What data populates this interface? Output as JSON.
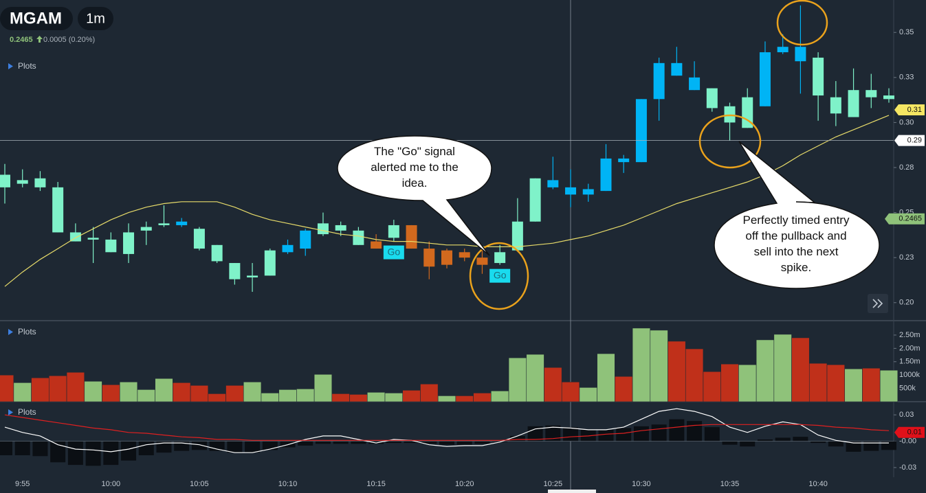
{
  "header": {
    "symbol": "MGAM",
    "interval": "1m",
    "price": 0.2465,
    "change": "0.0005 (0.20%)"
  },
  "callouts": [
    [
      "The \"Go\" signal",
      "alerted me to the",
      "idea."
    ],
    [
      "Perfectly timed entry",
      "off the pullback and",
      "sell into the next",
      "spike."
    ]
  ],
  "chart_data": [
    {
      "type": "candlestick",
      "panel_label": "Plots",
      "categories": [
        null,
        "9:55",
        null,
        null,
        null,
        null,
        "10:00",
        null,
        null,
        null,
        null,
        "10:05",
        null,
        null,
        null,
        null,
        "10:10",
        null,
        null,
        null,
        null,
        "10:15",
        null,
        null,
        null,
        null,
        "10:20",
        null,
        null,
        null,
        null,
        "10:25",
        null,
        null,
        null,
        null,
        "10:30",
        null,
        null,
        null,
        null,
        "10:35",
        null,
        null,
        null,
        null,
        "10:40",
        null,
        null,
        null,
        null
      ],
      "open": [
        0.271,
        0.266,
        0.269,
        0.264,
        0.239,
        0.235,
        0.235,
        0.227,
        0.24,
        0.243,
        0.243,
        0.241,
        0.232,
        0.222,
        0.214,
        0.215,
        0.228,
        0.23,
        0.238,
        0.243,
        0.24,
        0.234,
        0.236,
        0.243,
        0.23,
        0.229,
        0.228,
        0.225,
        0.222,
        0.229,
        0.245,
        0.268,
        0.264,
        0.26,
        0.262,
        0.278,
        0.278,
        0.313,
        0.333,
        0.325,
        0.319,
        0.309,
        0.297,
        0.309,
        0.339,
        0.342,
        0.336,
        0.314,
        0.303,
        0.318,
        0.315
      ],
      "high": [
        0.277,
        0.274,
        0.273,
        0.267,
        0.244,
        0.242,
        0.239,
        0.244,
        0.245,
        0.254,
        0.247,
        0.242,
        0.232,
        0.222,
        0.222,
        0.23,
        0.235,
        0.241,
        0.25,
        0.245,
        0.242,
        0.238,
        0.246,
        0.243,
        0.234,
        0.23,
        0.23,
        0.23,
        0.232,
        0.258,
        0.269,
        0.281,
        0.274,
        0.266,
        0.288,
        0.282,
        0.313,
        0.336,
        0.342,
        0.334,
        0.319,
        0.311,
        0.319,
        0.345,
        0.349,
        0.365,
        0.339,
        0.323,
        0.33,
        0.327,
        0.319
      ],
      "low": [
        0.255,
        0.264,
        0.262,
        0.239,
        0.234,
        0.222,
        0.228,
        0.222,
        0.232,
        0.242,
        0.242,
        0.229,
        0.222,
        0.21,
        0.206,
        0.215,
        0.227,
        0.226,
        0.237,
        0.237,
        0.232,
        0.23,
        0.234,
        0.23,
        0.213,
        0.219,
        0.223,
        0.216,
        0.221,
        0.229,
        0.245,
        0.263,
        0.253,
        0.256,
        0.262,
        0.272,
        0.278,
        0.301,
        0.326,
        0.318,
        0.306,
        0.29,
        0.297,
        0.309,
        0.338,
        0.316,
        0.301,
        0.298,
        0.303,
        0.308,
        0.311
      ],
      "close": [
        0.264,
        0.268,
        0.264,
        0.239,
        0.234,
        0.236,
        0.228,
        0.239,
        0.242,
        0.244,
        0.245,
        0.23,
        0.223,
        0.213,
        0.215,
        0.229,
        0.232,
        0.24,
        0.244,
        0.24,
        0.232,
        0.23,
        0.243,
        0.23,
        0.22,
        0.221,
        0.225,
        0.221,
        0.228,
        0.245,
        0.269,
        0.264,
        0.26,
        0.263,
        0.28,
        0.28,
        0.313,
        0.333,
        0.326,
        0.318,
        0.308,
        0.3,
        0.314,
        0.339,
        0.342,
        0.334,
        0.315,
        0.305,
        0.318,
        0.314,
        0.313
      ],
      "colors": [
        "#7ff2c9",
        "#7ff2c9",
        "#7ff2c9",
        "#7ff2c9",
        "#7ff2c9",
        "#7ff2c9",
        "#7ff2c9",
        "#7ff2c9",
        "#7ff2c9",
        "#7ff2c9",
        "#00b4f5",
        "#7ff2c9",
        "#7ff2c9",
        "#7ff2c9",
        "#7ff2c9",
        "#7ff2c9",
        "#00b4f5",
        "#00b4f5",
        "#7ff2c9",
        "#7ff2c9",
        "#7ff2c9",
        "#d2691e",
        "#7ff2c9",
        "#d2691e",
        "#d2691e",
        "#d2691e",
        "#d2691e",
        "#d2691e",
        "#7ff2c9",
        "#7ff2c9",
        "#7ff2c9",
        "#00b4f5",
        "#00b4f5",
        "#00b4f5",
        "#00b4f5",
        "#00b4f5",
        "#00b4f5",
        "#00b4f5",
        "#00b4f5",
        "#00b4f5",
        "#7ff2c9",
        "#7ff2c9",
        "#7ff2c9",
        "#00b4f5",
        "#00b4f5",
        "#00b4f5",
        "#7ff2c9",
        "#7ff2c9",
        "#7ff2c9",
        "#7ff2c9",
        "#7ff2c9"
      ],
      "signals": [
        null,
        null,
        null,
        null,
        null,
        null,
        null,
        null,
        null,
        null,
        null,
        null,
        null,
        null,
        null,
        null,
        null,
        null,
        null,
        null,
        null,
        null,
        "Go",
        null,
        null,
        null,
        null,
        null,
        "Go",
        null,
        null,
        null,
        null,
        null,
        null,
        null,
        null,
        null,
        null,
        null,
        null,
        null,
        null,
        null,
        null,
        null,
        null,
        null,
        null,
        null,
        null
      ],
      "ma": {
        "color": "#e8dc6a",
        "values": [
          0.209,
          0.217,
          0.224,
          0.23,
          0.236,
          0.241,
          0.246,
          0.25,
          0.253,
          0.255,
          0.256,
          0.256,
          0.256,
          0.253,
          0.249,
          0.246,
          0.244,
          0.242,
          0.24,
          0.238,
          0.237,
          0.235,
          0.234,
          0.234,
          0.233,
          0.232,
          0.232,
          0.231,
          0.231,
          0.231,
          0.232,
          0.233,
          0.235,
          0.237,
          0.24,
          0.243,
          0.247,
          0.251,
          0.255,
          0.258,
          0.261,
          0.264,
          0.267,
          0.271,
          0.276,
          0.282,
          0.287,
          0.292,
          0.296,
          0.3,
          0.304
        ]
      },
      "ylim": [
        0.19,
        0.368
      ],
      "yticks": [
        0.35,
        {
          "value": 0.325,
          "label": "0.33"
        },
        {
          "value": 0.3,
          "label": "0.30"
        },
        {
          "value": 0.275,
          "label": "0.28"
        },
        0.25,
        {
          "value": 0.225,
          "label": "0.23"
        },
        {
          "value": 0.2,
          "label": "0.20"
        }
      ],
      "price_markers": [
        {
          "value": 0.307,
          "label": "0.31",
          "color": "#f5e663",
          "line": false
        },
        {
          "value": 0.29,
          "label": "0.29",
          "color": "#ffffff",
          "line": true
        },
        {
          "value": 0.2465,
          "label": "0.2465",
          "color": "#8fc27a",
          "line": false
        }
      ]
    },
    {
      "type": "bar",
      "panel_label": "Plots",
      "values": [
        997000,
        712000,
        894000,
        972000,
        1101000,
        764000,
        635000,
        738000,
        453000,
        868000,
        712000,
        609000,
        298000,
        609000,
        738000,
        324000,
        453000,
        479000,
        1023000,
        298000,
        272000,
        350000,
        324000,
        427000,
        661000,
        220000,
        220000,
        324000,
        402000,
        1645000,
        1775000,
        1282000,
        738000,
        531000,
        1801000,
        946000,
        2759000,
        2681000,
        2267000,
        1982000,
        1127000,
        1412000,
        1386000,
        2319000,
        2526000,
        2396000,
        1438000,
        1386000,
        1231000,
        1256000,
        1179000
      ],
      "colors": [
        "#c0301a",
        "#8fc27a",
        "#c0301a",
        "#c0301a",
        "#c0301a",
        "#8fc27a",
        "#c0301a",
        "#8fc27a",
        "#8fc27a",
        "#8fc27a",
        "#c0301a",
        "#c0301a",
        "#c0301a",
        "#c0301a",
        "#8fc27a",
        "#8fc27a",
        "#8fc27a",
        "#8fc27a",
        "#8fc27a",
        "#c0301a",
        "#c0301a",
        "#8fc27a",
        "#8fc27a",
        "#c0301a",
        "#c0301a",
        "#8fc27a",
        "#c0301a",
        "#c0301a",
        "#8fc27a",
        "#8fc27a",
        "#8fc27a",
        "#c0301a",
        "#c0301a",
        "#8fc27a",
        "#8fc27a",
        "#c0301a",
        "#8fc27a",
        "#8fc27a",
        "#c0301a",
        "#c0301a",
        "#c0301a",
        "#c0301a",
        "#8fc27a",
        "#8fc27a",
        "#8fc27a",
        "#c0301a",
        "#c0301a",
        "#c0301a",
        "#8fc27a",
        "#c0301a",
        "#8fc27a"
      ],
      "ylim": [
        0,
        3040000
      ],
      "yticks": [
        {
          "value": 2500000,
          "label": "2.50m"
        },
        {
          "value": 2000000,
          "label": "2.00m"
        },
        {
          "value": 1500000,
          "label": "1.50m"
        },
        {
          "value": 1000000,
          "label": "1000k"
        },
        {
          "value": 500000,
          "label": "500k"
        }
      ]
    },
    {
      "type": "macd",
      "panel_label": "Plots",
      "histogram": {
        "color": "#0b0f14",
        "values": [
          -0.016,
          -0.016,
          -0.017,
          -0.024,
          -0.027,
          -0.028,
          -0.027,
          -0.022,
          -0.016,
          -0.013,
          -0.011,
          -0.01,
          -0.011,
          -0.013,
          -0.013,
          -0.01,
          -0.007,
          -0.005,
          -0.003,
          -0.003,
          -0.003,
          -0.003,
          -0.002,
          -0.002,
          -0.003,
          -0.004,
          -0.004,
          -0.003,
          -0.001,
          0.006,
          0.017,
          0.018,
          0.016,
          0.013,
          0.013,
          0.015,
          0.017,
          0.019,
          0.025,
          0.023,
          0.016,
          -0.004,
          -0.006,
          0.002,
          0.004,
          0.005,
          -0.002,
          -0.006,
          -0.012,
          -0.011,
          -0.01
        ]
      },
      "series": [
        {
          "color": "#ffffff",
          "values": [
            0.016,
            0.01,
            0.006,
            -0.004,
            -0.009,
            -0.01,
            -0.012,
            -0.009,
            -0.004,
            -0.002,
            -0.002,
            -0.004,
            -0.009,
            -0.013,
            -0.013,
            -0.009,
            -0.004,
            0.002,
            0.006,
            0.006,
            0.002,
            -0.002,
            0.002,
            0.001,
            -0.004,
            -0.006,
            -0.005,
            -0.005,
            -0.001,
            0.006,
            0.014,
            0.016,
            0.015,
            0.013,
            0.013,
            0.016,
            0.025,
            0.034,
            0.037,
            0.034,
            0.028,
            0.016,
            0.01,
            0.017,
            0.022,
            0.019,
            0.007,
            0.001,
            -0.002,
            -0.002,
            -0.002
          ]
        },
        {
          "color": "#e02020",
          "values": [
            0.03,
            0.027,
            0.024,
            0.021,
            0.018,
            0.015,
            0.013,
            0.01,
            0.009,
            0.007,
            0.005,
            0.004,
            0.002,
            0.002,
            0.001,
            0.001,
            0.001,
            0.001,
            0.001,
            0.001,
            0.001,
            0.001,
            0.001,
            0.001,
            0.001,
            0.001,
            0.001,
            0.001,
            0.001,
            0.002,
            0.002,
            0.003,
            0.005,
            0.006,
            0.008,
            0.009,
            0.012,
            0.014,
            0.016,
            0.018,
            0.019,
            0.019,
            0.019,
            0.019,
            0.019,
            0.019,
            0.018,
            0.016,
            0.015,
            0.013,
            0.012
          ]
        }
      ],
      "ylim": [
        -0.041,
        0.045
      ],
      "yticks": [
        0.03,
        {
          "value": 0,
          "label": "-0.00"
        },
        -0.03
      ],
      "price_markers": [
        {
          "value": 0.01,
          "label": "0.01",
          "color": "#e0101a",
          "line": false
        }
      ]
    }
  ]
}
